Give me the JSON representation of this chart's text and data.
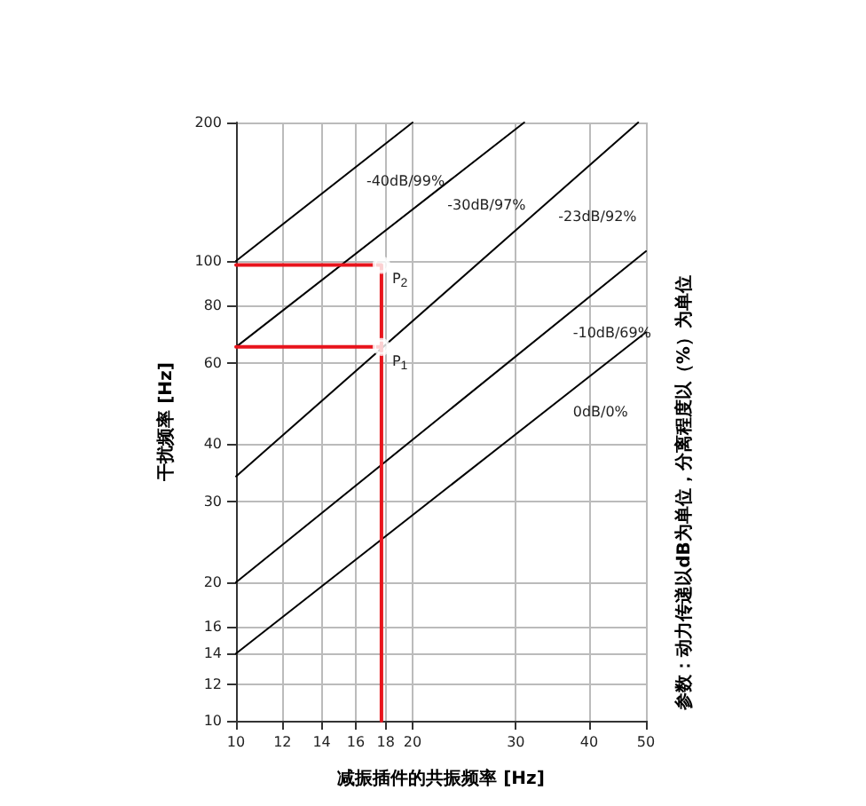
{
  "chart_data": {
    "type": "line",
    "xlabel": "减振插件的共振频率 [Hz]",
    "ylabel": "干扰频率 [Hz]",
    "log": "xy",
    "xlim": [
      10,
      50
    ],
    "ylim": [
      10,
      200
    ],
    "xticks": [
      10,
      12,
      14,
      16,
      18,
      20,
      30,
      40,
      50
    ],
    "yticks": [
      10,
      12,
      14,
      16,
      20,
      30,
      40,
      60,
      80,
      100,
      200
    ],
    "grid": true,
    "marker": "none",
    "line_style": "solid",
    "series": [
      {
        "color": "#000000",
        "x": [
          10,
          20
        ],
        "values": [
          100,
          200
        ]
      },
      {
        "color": "#000000",
        "x": [
          10,
          31
        ],
        "values": [
          65,
          200
        ]
      },
      {
        "color": "#000000",
        "x": [
          10,
          48.5
        ],
        "values": [
          34,
          200
        ]
      },
      {
        "color": "#000000",
        "x": [
          10,
          50
        ],
        "values": [
          20,
          105
        ]
      },
      {
        "color": "#000000",
        "x": [
          10,
          50
        ],
        "values": [
          14,
          70
        ]
      },
      {
        "color": "#e8141c",
        "x": [
          10,
          17.7,
          17.7
        ],
        "values": [
          98,
          98,
          10
        ]
      },
      {
        "color": "#e8141c",
        "x": [
          10,
          17.7
        ],
        "values": [
          65,
          65
        ]
      },
      {
        "type": "scatter",
        "marker": "circle",
        "color": "#ffffff",
        "x": [
          17.7,
          17.7
        ],
        "values": [
          98,
          65
        ]
      }
    ],
    "annotations": [
      {
        "text": "-40dB/99%",
        "x": 16,
        "y": 160
      },
      {
        "text": "-30dB/97%",
        "x": 22,
        "y": 142
      },
      {
        "text": "-23dB/92%",
        "x": 34,
        "y": 134
      },
      {
        "text": "-10dB/69%",
        "x": 36,
        "y": 75
      },
      {
        "text": "0dB/0%",
        "x": 36,
        "y": 50.4
      },
      {
        "text": "P$_{2}$",
        "x": 17.7,
        "y": 98
      },
      {
        "text": "P$_{1}$",
        "x": 17.7,
        "y": 65
      },
      "参数：动力传递以dB为单位，分离程度以（%）为单位"
    ]
  }
}
